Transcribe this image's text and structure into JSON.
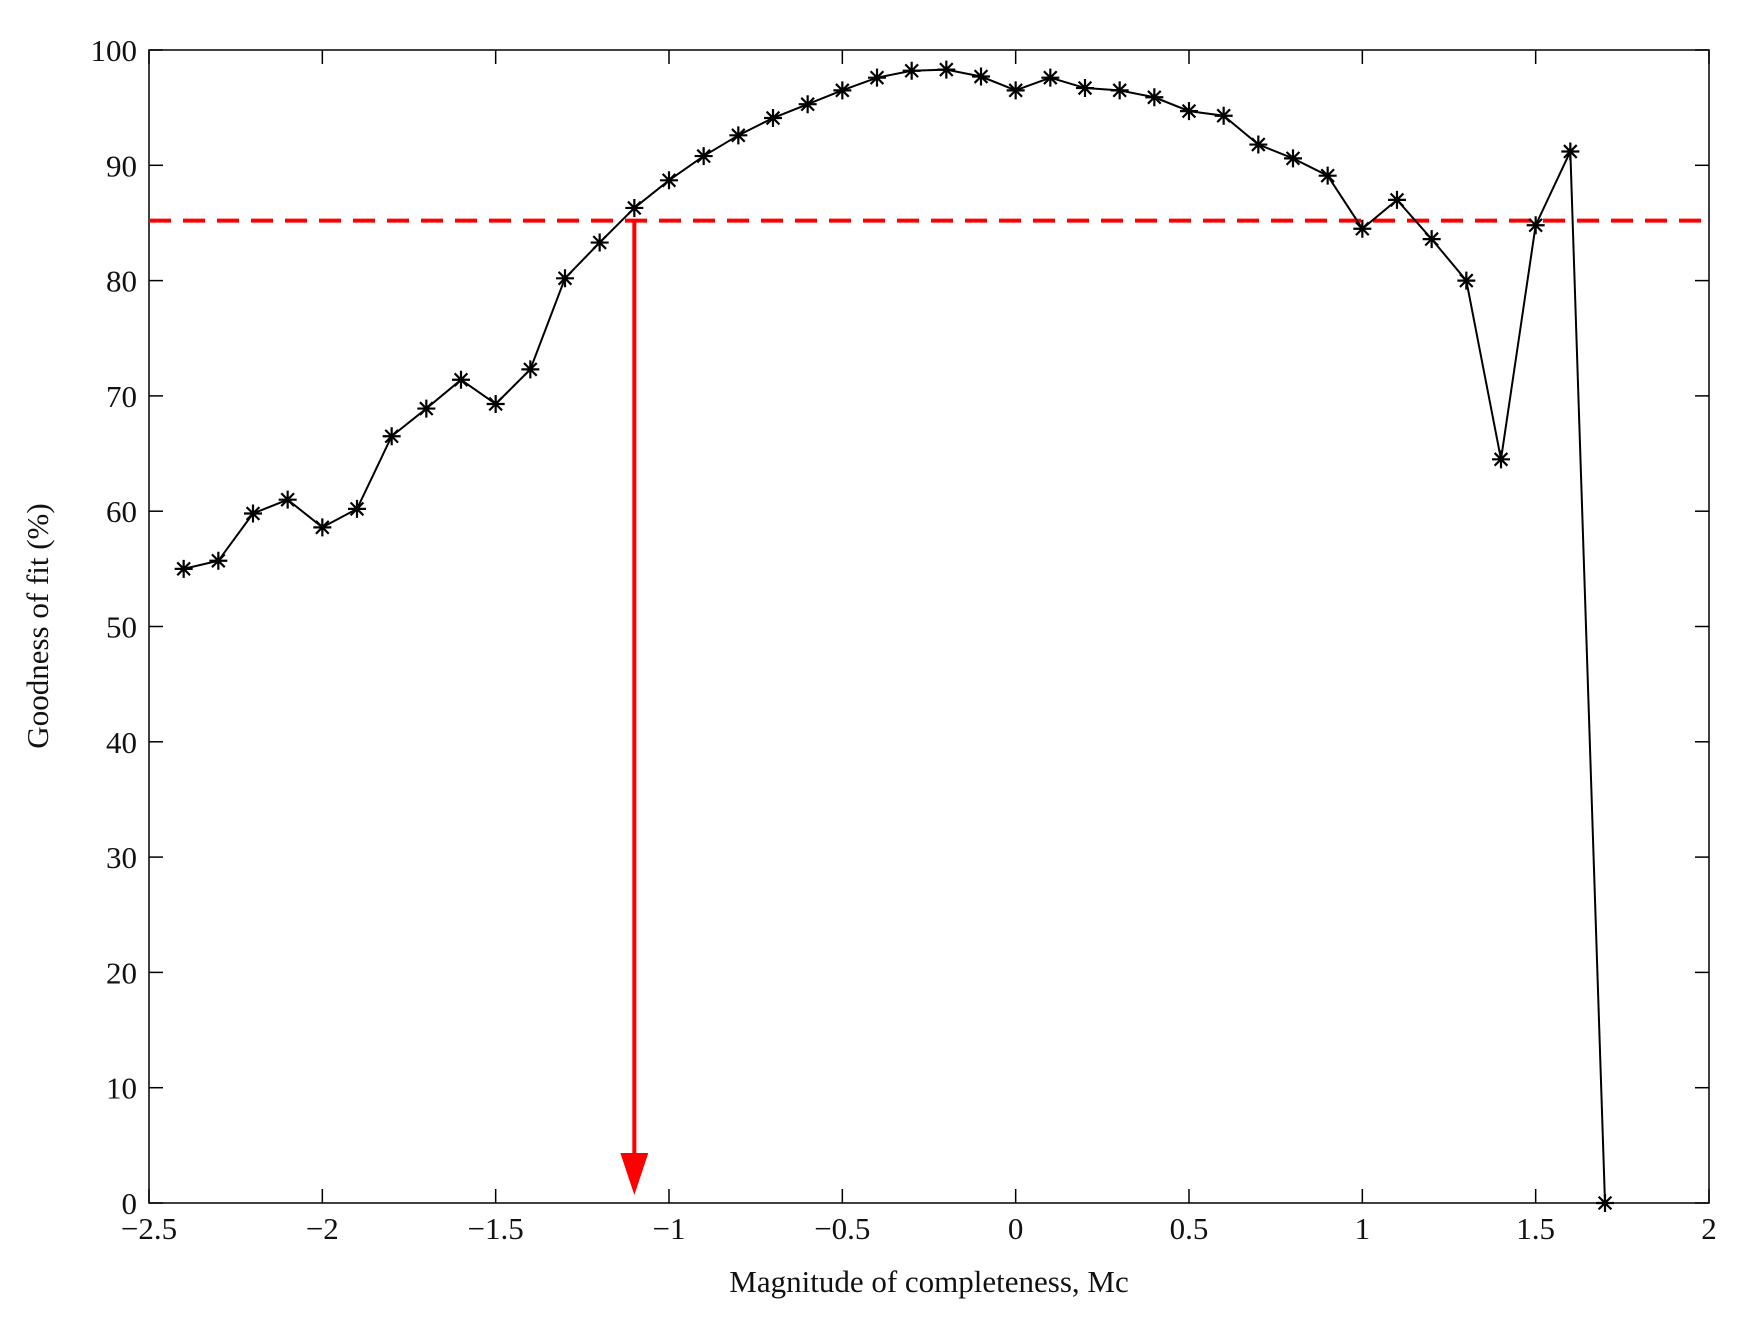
{
  "chart_data": {
    "type": "line",
    "xlabel": "Magnitude of completeness, Mc",
    "ylabel": "Goodness of fit (%)",
    "x": [
      -2.4,
      -2.3,
      -2.2,
      -2.1,
      -2.0,
      -1.9,
      -1.8,
      -1.7,
      -1.6,
      -1.5,
      -1.4,
      -1.3,
      -1.2,
      -1.1,
      -1.0,
      -0.9,
      -0.8,
      -0.7,
      -0.6,
      -0.5,
      -0.4,
      -0.3,
      -0.2,
      -0.1,
      0,
      0.1,
      0.2,
      0.3,
      0.4,
      0.5,
      0.6,
      0.7,
      0.8,
      0.9,
      1.0,
      1.1,
      1.2,
      1.3,
      1.4,
      1.5,
      1.6,
      1.7
    ],
    "values": [
      55,
      55.7,
      59.8,
      61,
      58.6,
      60.2,
      66.5,
      68.9,
      71.4,
      69.3,
      72.3,
      80.2,
      83.3,
      86.3,
      88.7,
      90.8,
      92.6,
      94.1,
      95.3,
      96.5,
      97.6,
      98.2,
      98.3,
      97.7,
      96.5,
      97.6,
      96.7,
      96.5,
      95.9,
      94.7,
      94.3,
      91.8,
      90.6,
      89.1,
      84.5,
      87,
      83.6,
      80,
      64.5,
      84.8,
      91.2,
      0
    ],
    "color": "#000000",
    "marker": "asterisk",
    "threshold": 85.2,
    "threshold_color": "#ff0000",
    "arrow_x": -1.1,
    "xlim": [
      -2.5,
      2
    ],
    "ylim": [
      0,
      100
    ],
    "xticks": [
      {
        "value": -2.5,
        "label": "−2.5"
      },
      {
        "value": -2,
        "label": "−2"
      },
      {
        "value": -1.5,
        "label": "−1.5"
      },
      {
        "value": -1,
        "label": "−1"
      },
      {
        "value": -0.5,
        "label": "−0.5"
      },
      0,
      0.5,
      1,
      1.5,
      2
    ],
    "yticks": [
      0,
      10,
      20,
      30,
      40,
      50,
      60,
      70,
      80,
      90,
      100
    ],
    "grid": false
  }
}
